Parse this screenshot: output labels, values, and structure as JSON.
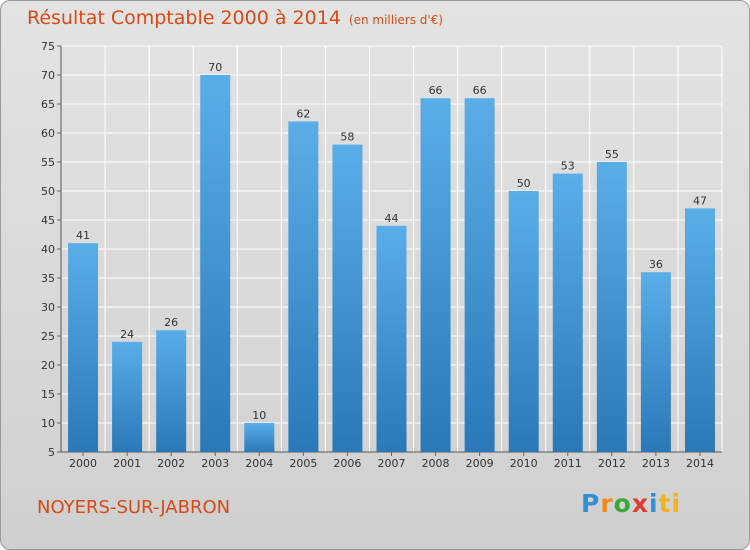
{
  "chart_data": {
    "type": "bar",
    "title": "Résultat Comptable 2000 à 2014",
    "unit_note": "(en milliers d'€)",
    "categories": [
      "2000",
      "2001",
      "2002",
      "2003",
      "2004",
      "2005",
      "2006",
      "2007",
      "2008",
      "2009",
      "2010",
      "2011",
      "2012",
      "2013",
      "2014"
    ],
    "values": [
      41,
      24,
      26,
      70,
      10,
      62,
      58,
      44,
      66,
      66,
      50,
      53,
      55,
      36,
      47
    ],
    "ylim": [
      5,
      75
    ],
    "yticks": [
      5,
      10,
      15,
      20,
      25,
      30,
      35,
      40,
      45,
      50,
      55,
      60,
      65,
      70,
      75
    ],
    "grid": true,
    "bar_color_top": "#5aaee8",
    "bar_color_bottom": "#2a78b8"
  },
  "footer": {
    "town": "NOYERS-SUR-JABRON",
    "brand": [
      "P",
      "r",
      "o",
      "x",
      "i",
      "ti"
    ]
  }
}
